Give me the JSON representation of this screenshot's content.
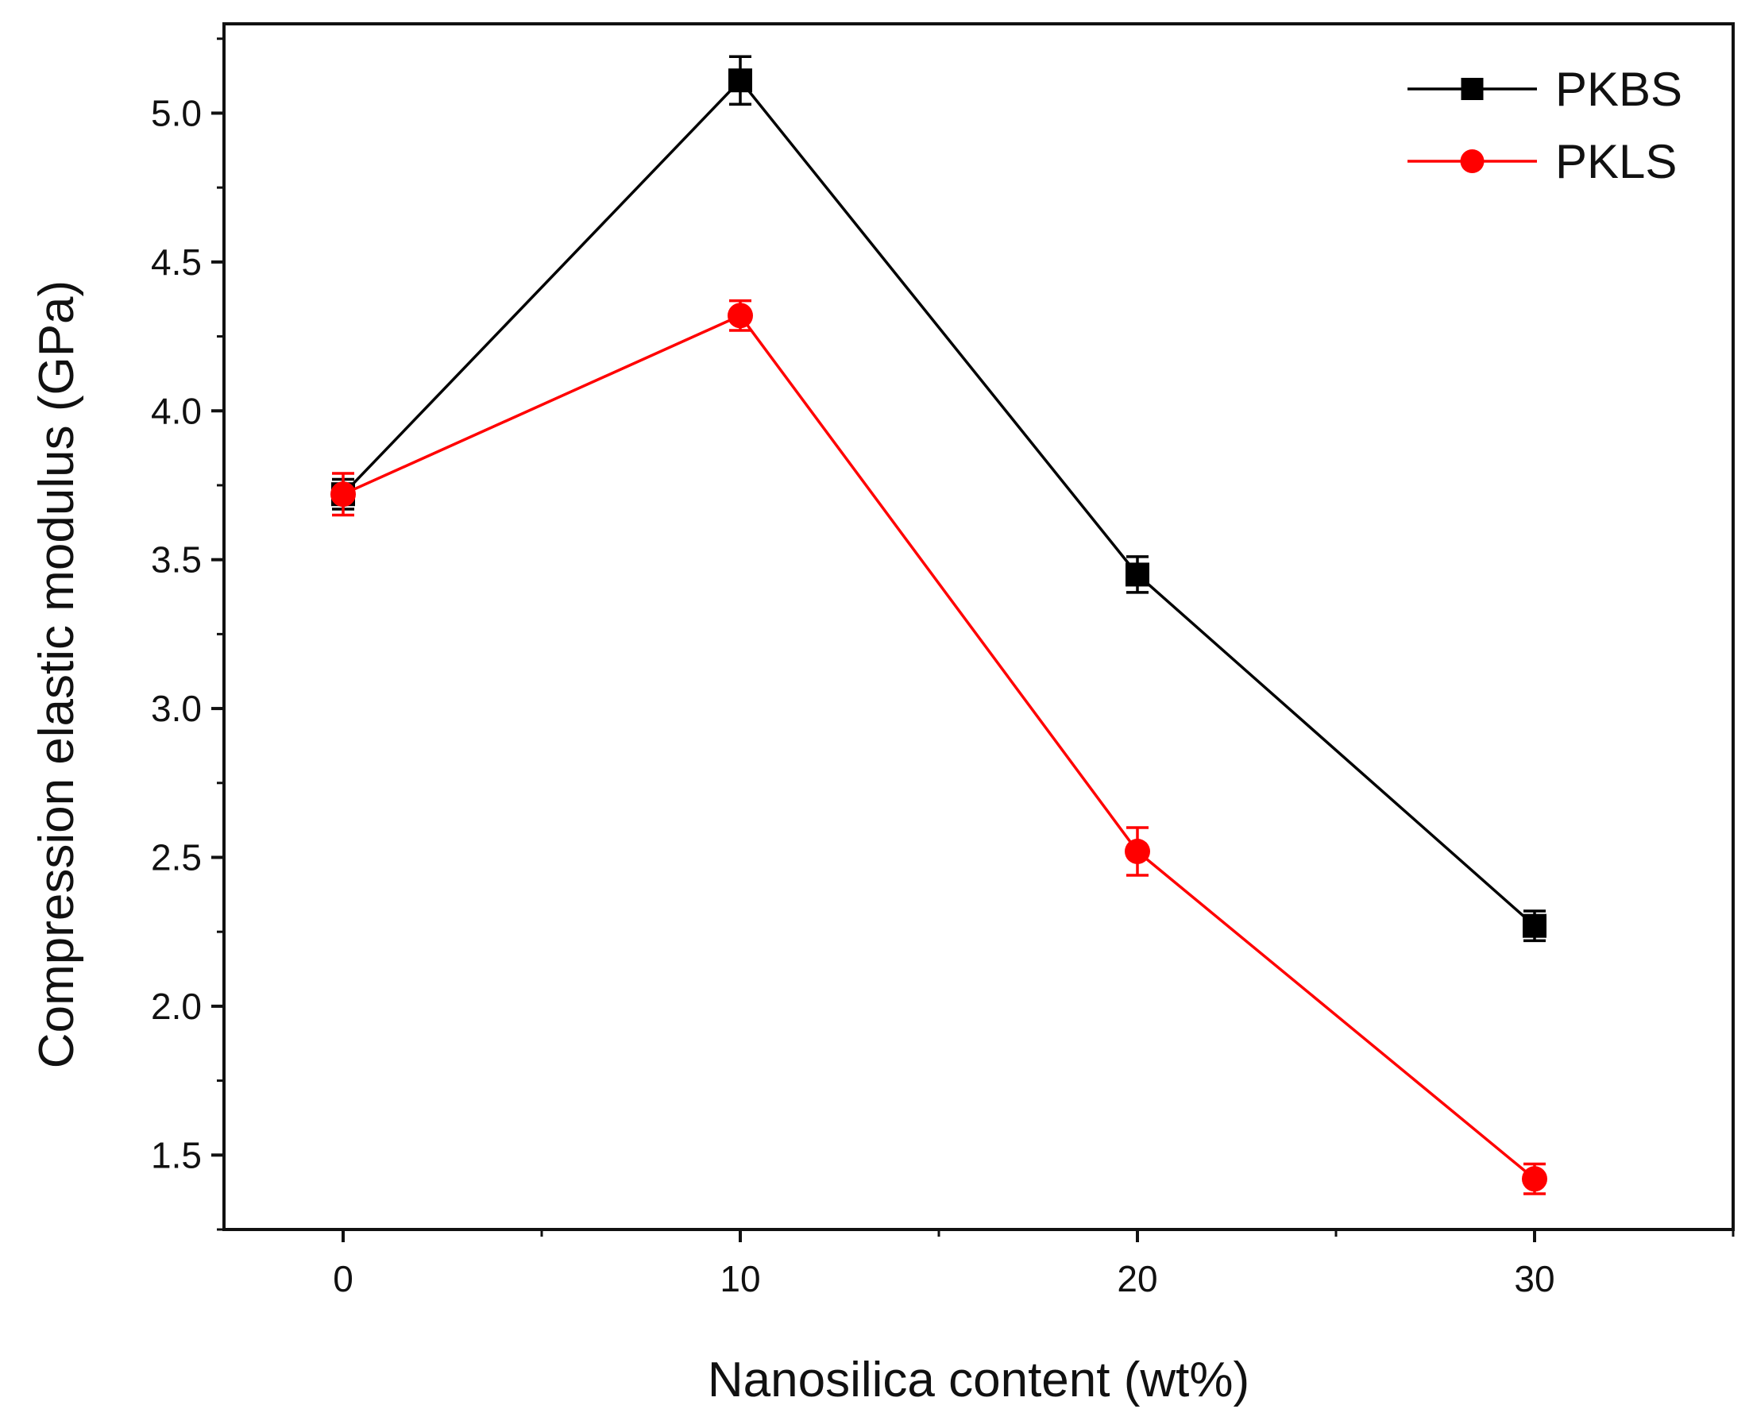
{
  "chart_data": {
    "type": "line",
    "title": "",
    "xlabel": "Nanosilica content (wt%)",
    "ylabel": "Compression elastic modulus (GPa)",
    "xlim": [
      -3,
      35
    ],
    "ylim": [
      1.25,
      5.3
    ],
    "x_ticks": [
      0,
      10,
      20,
      30
    ],
    "x_tick_labels": [
      "0",
      "10",
      "20",
      "30"
    ],
    "x_minor_ticks": [
      5,
      15,
      25,
      35
    ],
    "y_ticks": [
      1.5,
      2.0,
      2.5,
      3.0,
      3.5,
      4.0,
      4.5,
      5.0
    ],
    "y_tick_labels": [
      "1.5",
      "2.0",
      "2.5",
      "3.0",
      "3.5",
      "4.0",
      "4.5",
      "5.0"
    ],
    "y_minor_ticks": [
      1.25,
      1.75,
      2.25,
      2.75,
      3.25,
      3.75,
      4.25,
      4.75,
      5.25
    ],
    "grid": false,
    "legend_position": "top-right",
    "x": [
      0,
      10,
      20,
      30
    ],
    "series": [
      {
        "name": "PKBS",
        "color": "#000000",
        "marker": "square",
        "values": [
          3.72,
          5.11,
          3.45,
          2.27
        ],
        "errors": [
          0.05,
          0.08,
          0.06,
          0.05
        ]
      },
      {
        "name": "PKLS",
        "color": "#ff0000",
        "marker": "circle",
        "values": [
          3.72,
          4.32,
          2.52,
          1.42
        ],
        "errors": [
          0.07,
          0.05,
          0.08,
          0.05
        ]
      }
    ]
  }
}
